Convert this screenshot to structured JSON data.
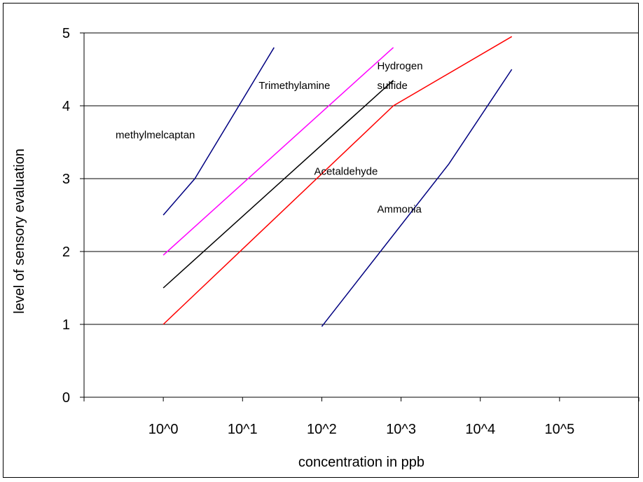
{
  "chart_data": {
    "type": "line",
    "title": "",
    "xlabel": "concentration in ppb",
    "ylabel": "level of sensory evaluation",
    "x_scale": "log10",
    "xlim": [
      0.1,
      1000000
    ],
    "ylim": [
      0,
      5
    ],
    "x_tick_labels": [
      "10^0",
      "10^1",
      "10^2",
      "10^3",
      "10^4",
      "10^5"
    ],
    "y_tick_labels": [
      "0",
      "1",
      "2",
      "3",
      "4",
      "5"
    ],
    "y_ticks": [
      0,
      1,
      2,
      3,
      4,
      5
    ],
    "grid": "horizontal",
    "series": [
      {
        "name": "methylmelcaptan",
        "color": "#000080",
        "x": [
          1,
          2.5,
          25
        ],
        "y": [
          2.5,
          3.0,
          4.8
        ]
      },
      {
        "name": "Trimethylamine",
        "color": "#ff00ff",
        "x": [
          1,
          800
        ],
        "y": [
          1.95,
          4.8
        ]
      },
      {
        "name": "Hydrogen sulfide",
        "color": "#000000",
        "x": [
          1,
          800
        ],
        "y": [
          1.5,
          4.35
        ]
      },
      {
        "name": "Acetaldehyde",
        "color": "#ff0000",
        "x": [
          1,
          800,
          25000
        ],
        "y": [
          1.0,
          4.0,
          4.95
        ]
      },
      {
        "name": "Ammonia",
        "color": "#000080",
        "x": [
          100,
          4000,
          25000
        ],
        "y": [
          0.97,
          3.2,
          4.5
        ]
      }
    ],
    "series_labels": [
      {
        "text": "methylmelcaptan",
        "x": 0.25,
        "y": 3.6
      },
      {
        "text": "Trimethylamine",
        "x": 16,
        "y": 4.28
      },
      {
        "text": "Hydrogen",
        "x": 500,
        "y": 4.55
      },
      {
        "text": "sulfide",
        "x": 500,
        "y": 4.28
      },
      {
        "text": "Acetaldehyde",
        "x": 80,
        "y": 3.1
      },
      {
        "text": "Ammonia",
        "x": 500,
        "y": 2.58
      }
    ]
  }
}
